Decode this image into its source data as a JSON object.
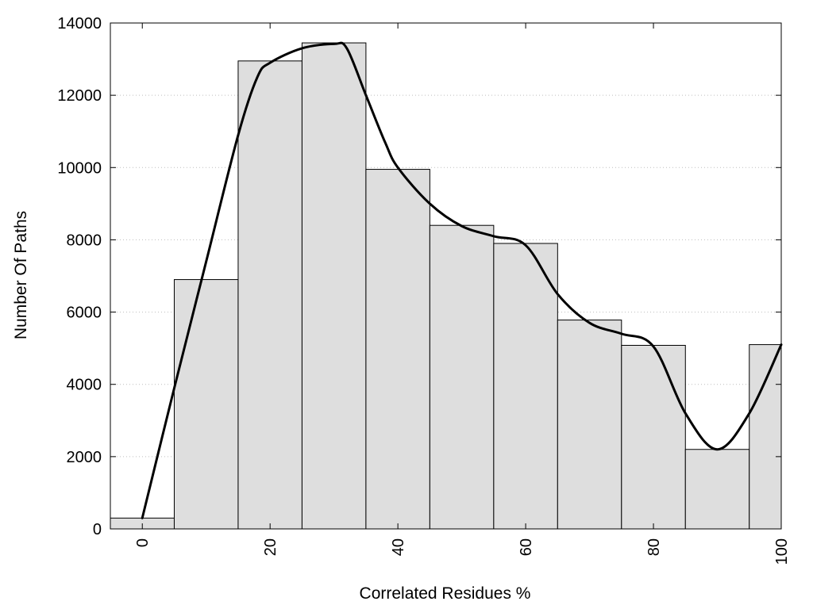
{
  "chart_data": {
    "type": "bar",
    "xlabel": "Correlated Residues %",
    "ylabel": "Number Of Paths",
    "xlim": [
      -5,
      100
    ],
    "ylim": [
      0,
      14000
    ],
    "x_ticks": [
      0,
      20,
      40,
      60,
      80,
      100
    ],
    "y_ticks": [
      0,
      2000,
      4000,
      6000,
      8000,
      10000,
      12000,
      14000
    ],
    "grid": "horizontal dotted",
    "bin_width": 10,
    "categories": [
      0,
      10,
      20,
      30,
      40,
      50,
      60,
      70,
      80,
      90,
      100
    ],
    "values": [
      300,
      6900,
      12950,
      13450,
      9950,
      8400,
      7900,
      5780,
      5080,
      2200,
      5100
    ],
    "bar_color": "#dedede",
    "curve": {
      "type": "line",
      "x": [
        0,
        5,
        10,
        15,
        18,
        20,
        25,
        30,
        32,
        35,
        38,
        40,
        45,
        50,
        55,
        60,
        65,
        70,
        75,
        80,
        85,
        90,
        95,
        100
      ],
      "y": [
        300,
        3900,
        7400,
        10900,
        12500,
        12900,
        13300,
        13420,
        13300,
        12000,
        10700,
        10000,
        9000,
        8380,
        8100,
        7850,
        6500,
        5700,
        5400,
        5050,
        3200,
        2200,
        3200,
        5100
      ],
      "color": "#000000"
    }
  }
}
